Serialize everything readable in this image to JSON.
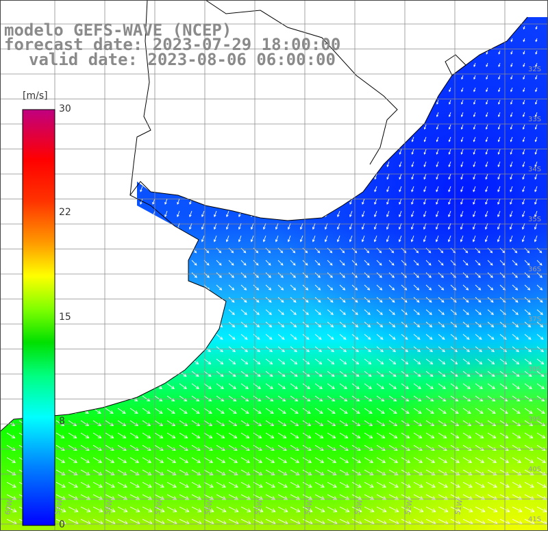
{
  "title": {
    "line1": "modelo GEFS-WAVE (NCEP)",
    "line2": "forecast date: 2023-07-29 18:00:00",
    "line3": "valid date: 2023-08-06 06:00:00"
  },
  "colorbar": {
    "unit": "[m/s]",
    "ticks": [
      "30",
      "22",
      "15",
      "8",
      "0"
    ],
    "colors": [
      "#0000ff",
      "#00b0ff",
      "#00ffff",
      "#00e000",
      "#40ff00",
      "#ffff00",
      "#ff8000",
      "#ff0000",
      "#ff0080",
      "#c00080"
    ]
  },
  "map": {
    "lat_labels": [
      "32S",
      "33S",
      "34S",
      "35S",
      "36S",
      "37S",
      "38S",
      "39S",
      "40S",
      "41S"
    ],
    "lon_labels": [
      "60W",
      "59W",
      "58W",
      "57W",
      "56W",
      "55W",
      "54W",
      "53W",
      "52W",
      "51W"
    ],
    "land_color": "#ffffff",
    "grid_color": "#8c8c8c"
  }
}
